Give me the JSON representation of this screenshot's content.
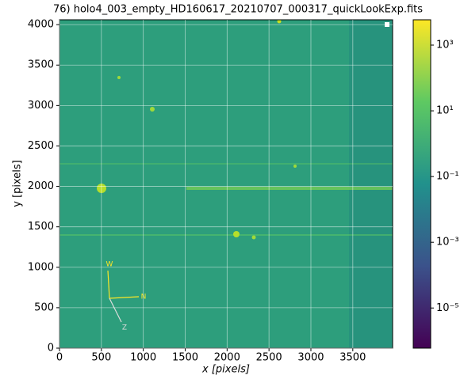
{
  "chart_data": {
    "type": "image",
    "title": "76) holo4_003_empty_HD160617_20210707_000317_quickLookExp.fits",
    "xlabel": "x [pixels]",
    "ylabel": "y [pixels]",
    "xlim": [
      0,
      3975
    ],
    "ylim": [
      0,
      4060
    ],
    "xticks": [
      0,
      500,
      1000,
      1500,
      2000,
      2500,
      3000,
      3500
    ],
    "yticks": [
      0,
      500,
      1000,
      1500,
      2000,
      2500,
      3000,
      3500,
      4000
    ],
    "grid": true,
    "colormap": "viridis",
    "colorbar": {
      "scale": "log",
      "lim": [
        6e-07,
        5900
      ],
      "ticks": [
        {
          "value": 1e-05,
          "label": "10⁻⁵"
        },
        {
          "value": 0.001,
          "label": "10⁻³"
        },
        {
          "value": 0.1,
          "label": "10⁻¹"
        },
        {
          "value": 10,
          "label": "10¹"
        },
        {
          "value": 1000,
          "label": "10³"
        }
      ]
    },
    "annotations": [
      "W",
      "N",
      "Z"
    ]
  }
}
